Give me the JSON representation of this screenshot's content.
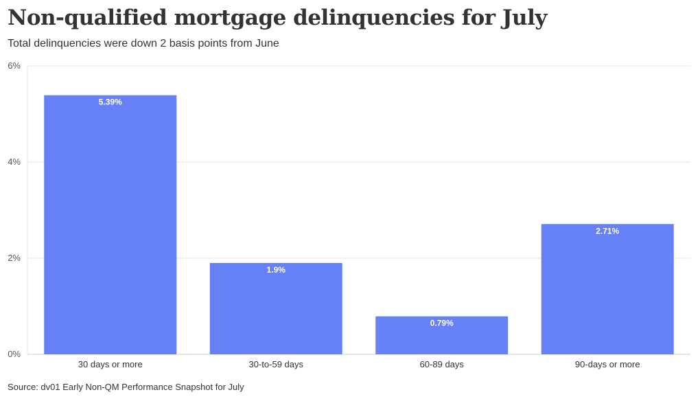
{
  "title": "Non-qualified mortgage delinquencies for July",
  "subtitle": "Total delinquencies were down 2 basis points from June",
  "source": "Source: dv01 Early Non-QM Performance Snapshot for July",
  "colors": {
    "bar": "#6680f5",
    "grid": "#e6e6e6",
    "axis": "#cccccc"
  },
  "chart_data": {
    "type": "bar",
    "categories": [
      "30 days or more",
      "30-to-59 days",
      "60-89 days",
      "90-days or more"
    ],
    "values": [
      5.39,
      1.9,
      0.79,
      2.71
    ],
    "data_labels": [
      "5.39%",
      "1.9%",
      "0.79%",
      "2.71%"
    ],
    "ylim": [
      0,
      6
    ],
    "yticks": [
      0,
      2,
      4,
      6
    ],
    "ytick_labels": [
      "0%",
      "2%",
      "4%",
      "6%"
    ],
    "grid": true
  }
}
